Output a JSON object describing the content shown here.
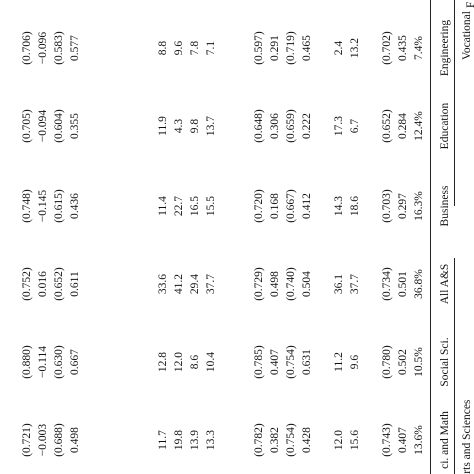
{
  "header": {
    "group_vocational": "Vocational",
    "group_arts_sciences": "Arts and Sciences",
    "group_edge_letter": "F",
    "col_nat_sci_math": "ci. and Math",
    "col_social_sci": "Social Sci.",
    "col_all_as": "All A&S",
    "col_business": "Business",
    "col_education": "Education",
    "col_engineering": "Engineering"
  },
  "block1": {
    "share": [
      "13.6%",
      "10.5%",
      "36.8%",
      "16.3%",
      "12.4%",
      "7.4%"
    ],
    "coef": [
      "0.407",
      "0.502",
      "0.501",
      "0.297",
      "0.284",
      "0.435"
    ],
    "se": [
      "(0.743)",
      "(0.780)",
      "(0.734)",
      "(0.703)",
      "(0.652)",
      "(0.702)"
    ]
  },
  "block2": {
    "row1": [
      "15.6",
      "9.6",
      "37.7",
      "18.6",
      "6.7",
      "13.2"
    ],
    "row2": [
      "12.0",
      "11.2",
      "36.1",
      "14.3",
      "17.3",
      "2.4"
    ]
  },
  "block3": {
    "c1": [
      "0.428",
      "0.631",
      "0.504",
      "0.412",
      "0.222",
      "0.465"
    ],
    "s1": [
      "(0.754)",
      "(0.754)",
      "(0.740)",
      "(0.667)",
      "(0.659)",
      "(0.719)"
    ],
    "c2": [
      "0.382",
      "0.407",
      "0.498",
      "0.168",
      "0.306",
      "0.291"
    ],
    "s2": [
      "(0.782)",
      "(0.785)",
      "(0.729)",
      "(0.720)",
      "(0.648)",
      "(0.597)"
    ]
  },
  "block4": {
    "row1": [
      "13.3",
      "10.4",
      "37.7",
      "15.5",
      "13.7",
      "7.1"
    ],
    "row2": [
      "13.9",
      "8.6",
      "29.4",
      "16.5",
      "9.8",
      "7.8"
    ],
    "row3": [
      "19.8",
      "12.0",
      "41.2",
      "22.7",
      "4.3",
      "9.6"
    ],
    "row4": [
      "11.7",
      "12.8",
      "33.6",
      "11.4",
      "11.9",
      "8.8"
    ]
  },
  "block5": {
    "c1": [
      "0.498",
      "0.667",
      "0.611",
      "0.436",
      "0.355",
      "0.577"
    ],
    "s1": [
      "(0.688)",
      "(0.630)",
      "(0.652)",
      "(0.615)",
      "(0.604)",
      "(0.583)"
    ],
    "c2": [
      "−0.003",
      "−0.114",
      "0.016",
      "−0.145",
      "−0.094",
      "−0.096"
    ],
    "s2": [
      "(0.721)",
      "(0.880)",
      "(0.752)",
      "(0.748)",
      "(0.705)",
      "(0.706)"
    ]
  }
}
